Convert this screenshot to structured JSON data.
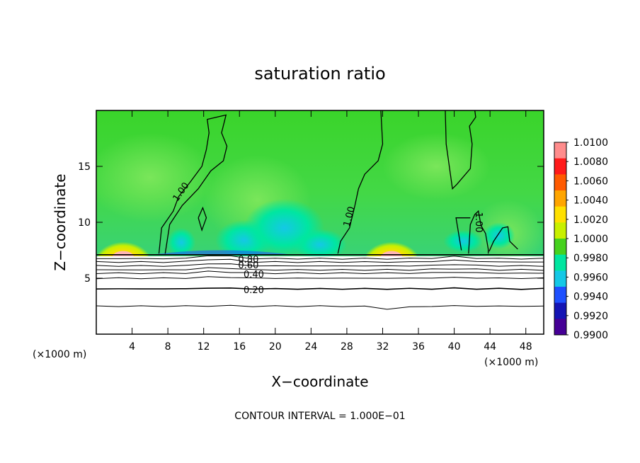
{
  "chart_data": {
    "type": "heatmap",
    "title": "saturation ratio",
    "xlabel": "X−coordinate",
    "ylabel": "Z−coordinate",
    "x_unit_left": "(×1000 m)",
    "x_unit_right": "(×1000 m)",
    "xlim": [
      0,
      50
    ],
    "ylim": [
      0,
      20
    ],
    "x_ticks": [
      4,
      8,
      12,
      16,
      20,
      24,
      28,
      32,
      36,
      40,
      44,
      48
    ],
    "y_ticks": [
      5,
      10,
      15
    ],
    "footer": "CONTOUR INTERVAL = 1.000E−01",
    "colorbar": {
      "levels": [
        "1.0100",
        "1.0080",
        "1.0060",
        "1.0040",
        "1.0020",
        "1.0000",
        "0.9980",
        "0.9960",
        "0.9940",
        "0.9920",
        "0.9900"
      ],
      "colors": [
        "#ff8c8c",
        "#ff1a1a",
        "#ff5a00",
        "#ffa500",
        "#ffe000",
        "#c8f000",
        "#46d21e",
        "#00e6a0",
        "#14c8e6",
        "#1e50ff",
        "#1414b4",
        "#460096"
      ]
    },
    "cloud_top_z": 7.1,
    "contour_labels": [
      {
        "text": "1.00",
        "x": 9.5,
        "z": 12.7,
        "rotate": -55
      },
      {
        "text": "1.00",
        "x": 28.3,
        "z": 10.5,
        "rotate": -75
      },
      {
        "text": "1.00",
        "x": 42.7,
        "z": 10.0,
        "rotate": 90
      },
      {
        "text": "0.80",
        "x": 17.0,
        "z": 6.6,
        "rotate": 0
      },
      {
        "text": "0.60",
        "x": 17.0,
        "z": 6.1,
        "rotate": 0
      },
      {
        "text": "0.40",
        "x": 17.6,
        "z": 5.3,
        "rotate": 0
      },
      {
        "text": "0.20",
        "x": 17.6,
        "z": 3.9,
        "rotate": 0
      }
    ],
    "warm_spots": [
      {
        "x": 3.0,
        "z": 7.3
      },
      {
        "x": 33.0,
        "z": 7.3
      }
    ]
  }
}
